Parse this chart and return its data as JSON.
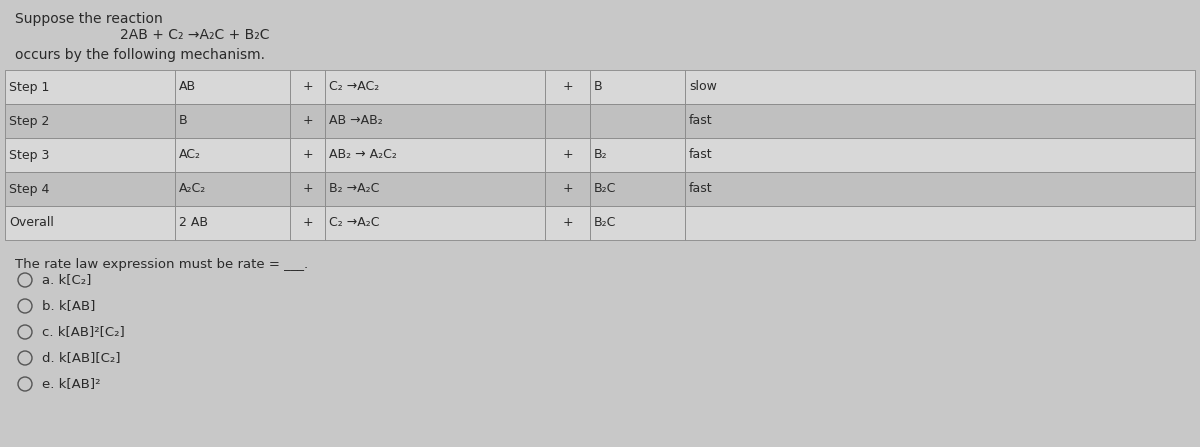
{
  "bg_color": "#c8c8c8",
  "table_row_colors": [
    "#d8d8d8",
    "#c0c0c0",
    "#d8d8d8",
    "#c0c0c0",
    "#d8d8d8"
  ],
  "border_color": "#888888",
  "text_color": "#2a2a2a",
  "header_text": "Suppose the reaction",
  "reaction_line": "2AB + C₂ →A₂C + B₂C",
  "subheader": "occurs by the following mechanism.",
  "rate_law_text": "The rate law expression must be rate = ___.",
  "options": [
    "a. k[C₂]",
    "b. k[AB]",
    "c. k[AB]²[C₂]",
    "d. k[AB][C₂]",
    "e. k[AB]²"
  ],
  "col1_labels": [
    "Step 1",
    "Step 2",
    "Step 3",
    "Step 4",
    "Overall"
  ],
  "col2_reactant1": [
    "AB",
    "B",
    "AC₂",
    "A₂C₂",
    "2 AB"
  ],
  "col3_plus1": [
    "+",
    "+",
    "+",
    "+",
    "+"
  ],
  "col4_reaction": [
    "C₂ →AC₂",
    "AB →AB₂",
    "AB₂ → A₂C₂",
    "B₂ →A₂C",
    "C₂ →A₂C"
  ],
  "col5_plus2": [
    "+",
    "",
    "+",
    "+",
    "+"
  ],
  "col6_product": [
    "B",
    "",
    "B₂",
    "B₂C",
    "B₂C"
  ],
  "col7_rate": [
    "slow",
    "fast",
    "fast",
    "fast",
    ""
  ],
  "fig_width": 12.0,
  "fig_height": 4.47,
  "dpi": 100
}
